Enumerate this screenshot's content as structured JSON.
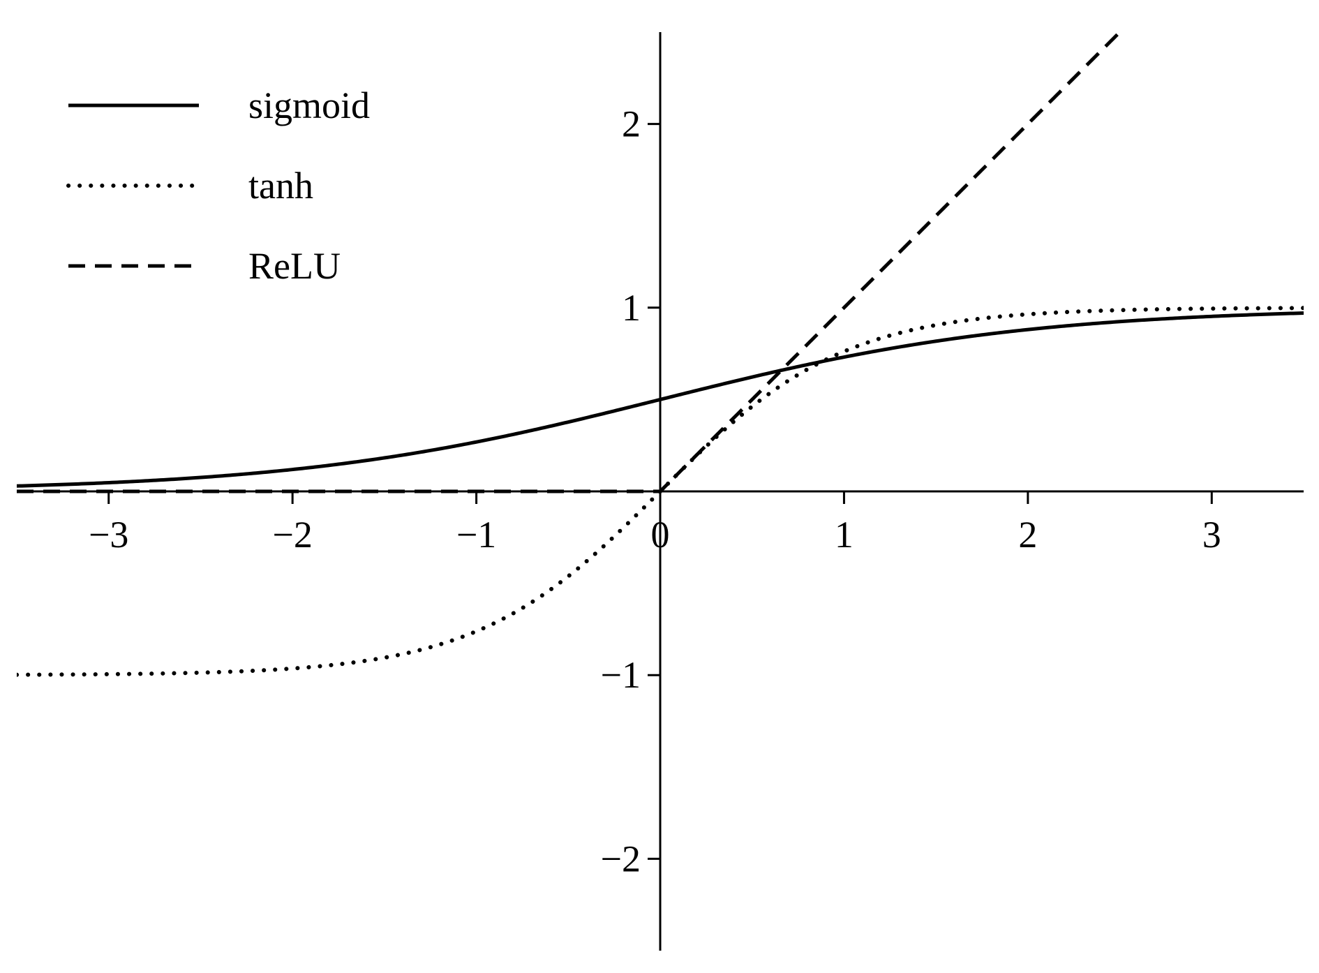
{
  "chart_data": {
    "type": "line",
    "title": "",
    "xlabel": "",
    "ylabel": "",
    "xlim": [
      -3.5,
      3.5
    ],
    "ylim": [
      -2.5,
      2.5
    ],
    "grid": false,
    "legend_position": "top-left",
    "axis_style": "centered-at-origin",
    "x_ticks": [
      -3,
      -2,
      -1,
      0,
      1,
      2,
      3
    ],
    "x_tick_labels": [
      "−3",
      "−2",
      "−1",
      "0",
      "1",
      "2",
      "3"
    ],
    "y_ticks": [
      -2,
      -1,
      1,
      2
    ],
    "y_tick_labels": [
      "−2",
      "−1",
      "1",
      "2"
    ],
    "line_color": "#000000",
    "series": [
      {
        "name": "sigmoid",
        "function": "sigmoid",
        "line_style": "solid"
      },
      {
        "name": "tanh",
        "function": "tanh",
        "line_style": "dotted"
      },
      {
        "name": "ReLU",
        "function": "relu",
        "line_style": "dashed"
      }
    ]
  }
}
